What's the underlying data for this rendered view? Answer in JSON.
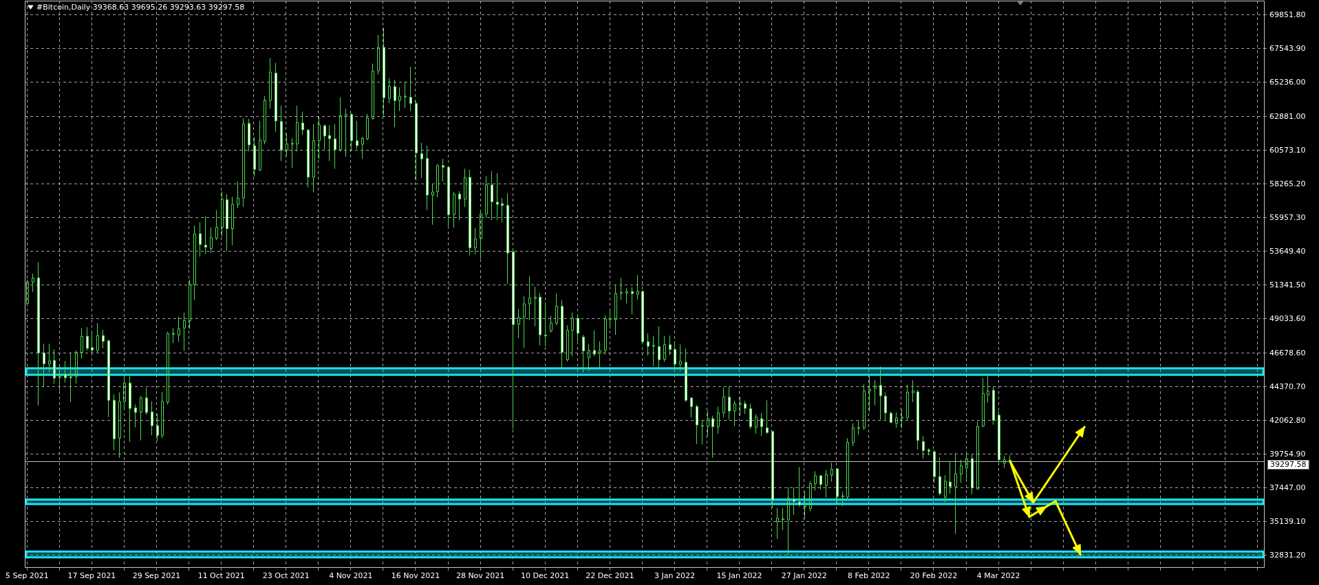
{
  "chart_data": {
    "type": "candlestick",
    "title": "#Bitcoin,Daily 39368.63 39695.26 39293.63 39297.58",
    "color": "#4cd94c",
    "grid": true,
    "xlim": [
      "2021-09-04T14:00",
      "2022-04-22T08:00"
    ],
    "ylim": [
      31980,
      70840
    ],
    "xticks": [
      {
        "value": "2021-09-05",
        "label": "5 Sep 2021"
      },
      {
        "value": "2021-09-11",
        "label": null
      },
      {
        "value": "2021-09-17",
        "label": "17 Sep 2021"
      },
      {
        "value": "2021-09-23",
        "label": null
      },
      {
        "value": "2021-09-29",
        "label": "29 Sep 2021"
      },
      {
        "value": "2021-10-05",
        "label": null
      },
      {
        "value": "2021-10-11",
        "label": "11 Oct 2021"
      },
      {
        "value": "2021-10-17",
        "label": null
      },
      {
        "value": "2021-10-23",
        "label": "23 Oct 2021"
      },
      {
        "value": "2021-10-29",
        "label": null
      },
      {
        "value": "2021-11-04",
        "label": "4 Nov 2021"
      },
      {
        "value": "2021-11-10",
        "label": null
      },
      {
        "value": "2021-11-16",
        "label": "16 Nov 2021"
      },
      {
        "value": "2021-11-22",
        "label": null
      },
      {
        "value": "2021-11-28",
        "label": "28 Nov 2021"
      },
      {
        "value": "2021-12-04",
        "label": null
      },
      {
        "value": "2021-12-10",
        "label": "10 Dec 2021"
      },
      {
        "value": "2021-12-16",
        "label": null
      },
      {
        "value": "2021-12-22",
        "label": "22 Dec 2021"
      },
      {
        "value": "2021-12-28",
        "label": null
      },
      {
        "value": "2022-01-03",
        "label": "3 Jan 2022"
      },
      {
        "value": "2022-01-09",
        "label": null
      },
      {
        "value": "2022-01-15",
        "label": "15 Jan 2022"
      },
      {
        "value": "2022-01-21",
        "label": null
      },
      {
        "value": "2022-01-27",
        "label": "27 Jan 2022"
      },
      {
        "value": "2022-02-02",
        "label": null
      },
      {
        "value": "2022-02-08",
        "label": "8 Feb 2022"
      },
      {
        "value": "2022-02-14",
        "label": null
      },
      {
        "value": "2022-02-20",
        "label": "20 Feb 2022"
      },
      {
        "value": "2022-02-26",
        "label": null
      },
      {
        "value": "2022-03-04",
        "label": "4 Mar 2022"
      },
      {
        "value": "2022-03-10",
        "label": null
      },
      {
        "value": "2022-03-16",
        "label": null
      },
      {
        "value": "2022-03-22",
        "label": null
      },
      {
        "value": "2022-03-28",
        "label": null
      },
      {
        "value": "2022-04-03",
        "label": null
      },
      {
        "value": "2022-04-09",
        "label": null
      },
      {
        "value": "2022-04-15",
        "label": null
      },
      {
        "value": "2022-04-21",
        "label": null
      }
    ],
    "yticks": [
      {
        "value": 69851.8,
        "label": "69851.80"
      },
      {
        "value": 67543.9,
        "label": "67543.90"
      },
      {
        "value": 65236,
        "label": "65236.00"
      },
      {
        "value": 62881,
        "label": "62881.00"
      },
      {
        "value": 60573.1,
        "label": "60573.10"
      },
      {
        "value": 58265.2,
        "label": "58265.20"
      },
      {
        "value": 55957.3,
        "label": "55957.30"
      },
      {
        "value": 53649.4,
        "label": "53649.40"
      },
      {
        "value": 51341.5,
        "label": "51341.50"
      },
      {
        "value": 49033.6,
        "label": "49033.60"
      },
      {
        "value": 46678.6,
        "label": "46678.60"
      },
      {
        "value": 44370.7,
        "label": "44370.70"
      },
      {
        "value": 42062.8,
        "label": "42062.80"
      },
      {
        "value": 39754.9,
        "label": "39754.90"
      },
      {
        "value": 37447,
        "label": "37447.00"
      },
      {
        "value": 35139.1,
        "label": "35139.10"
      },
      {
        "value": 32831.2,
        "label": "32831.20"
      }
    ],
    "ref_lines": [
      {
        "axis": "y",
        "value": 39297.58,
        "label": "39297.58",
        "color": "#bdbdbd"
      }
    ],
    "bands": [
      {
        "axis": "y",
        "from": 45200,
        "to": 45650,
        "color": "#19e3f0"
      },
      {
        "axis": "y",
        "from": 36350,
        "to": 36650,
        "color": "#19e3f0"
      },
      {
        "axis": "y",
        "from": 32700,
        "to": 33100,
        "color": "#19e3f0"
      }
    ],
    "x": [
      "2021-09-05",
      "2021-09-06",
      "2021-09-07",
      "2021-09-08",
      "2021-09-09",
      "2021-09-10",
      "2021-09-11",
      "2021-09-12",
      "2021-09-13",
      "2021-09-14",
      "2021-09-15",
      "2021-09-16",
      "2021-09-17",
      "2021-09-18",
      "2021-09-19",
      "2021-09-20",
      "2021-09-21",
      "2021-09-22",
      "2021-09-23",
      "2021-09-24",
      "2021-09-25",
      "2021-09-26",
      "2021-09-27",
      "2021-09-28",
      "2021-09-29",
      "2021-09-30",
      "2021-10-01",
      "2021-10-02",
      "2021-10-03",
      "2021-10-04",
      "2021-10-05",
      "2021-10-06",
      "2021-10-07",
      "2021-10-08",
      "2021-10-09",
      "2021-10-10",
      "2021-10-11",
      "2021-10-12",
      "2021-10-13",
      "2021-10-14",
      "2021-10-15",
      "2021-10-16",
      "2021-10-17",
      "2021-10-18",
      "2021-10-19",
      "2021-10-20",
      "2021-10-21",
      "2021-10-22",
      "2021-10-23",
      "2021-10-24",
      "2021-10-25",
      "2021-10-26",
      "2021-10-27",
      "2021-10-28",
      "2021-10-29",
      "2021-10-30",
      "2021-10-31",
      "2021-11-01",
      "2021-11-02",
      "2021-11-03",
      "2021-11-04",
      "2021-11-05",
      "2021-11-06",
      "2021-11-07",
      "2021-11-08",
      "2021-11-09",
      "2021-11-10",
      "2021-11-11",
      "2021-11-12",
      "2021-11-13",
      "2021-11-14",
      "2021-11-15",
      "2021-11-16",
      "2021-11-17",
      "2021-11-18",
      "2021-11-19",
      "2021-11-20",
      "2021-11-21",
      "2021-11-22",
      "2021-11-23",
      "2021-11-24",
      "2021-11-25",
      "2021-11-26",
      "2021-11-27",
      "2021-11-28",
      "2021-11-29",
      "2021-11-30",
      "2021-12-01",
      "2021-12-02",
      "2021-12-03",
      "2021-12-04",
      "2021-12-05",
      "2021-12-06",
      "2021-12-07",
      "2021-12-08",
      "2021-12-09",
      "2021-12-10",
      "2021-12-11",
      "2021-12-12",
      "2021-12-13",
      "2021-12-14",
      "2021-12-15",
      "2021-12-16",
      "2021-12-17",
      "2021-12-18",
      "2021-12-19",
      "2021-12-20",
      "2021-12-21",
      "2021-12-22",
      "2021-12-23",
      "2021-12-24",
      "2021-12-25",
      "2021-12-26",
      "2021-12-27",
      "2021-12-28",
      "2021-12-29",
      "2021-12-30",
      "2021-12-31",
      "2022-01-01",
      "2022-01-02",
      "2022-01-03",
      "2022-01-04",
      "2022-01-05",
      "2022-01-06",
      "2022-01-07",
      "2022-01-08",
      "2022-01-09",
      "2022-01-10",
      "2022-01-11",
      "2022-01-12",
      "2022-01-13",
      "2022-01-14",
      "2022-01-15",
      "2022-01-16",
      "2022-01-17",
      "2022-01-18",
      "2022-01-19",
      "2022-01-20",
      "2022-01-21",
      "2022-01-22",
      "2022-01-23",
      "2022-01-24",
      "2022-01-25",
      "2022-01-26",
      "2022-01-27",
      "2022-01-28",
      "2022-01-29",
      "2022-01-30",
      "2022-01-31",
      "2022-02-01",
      "2022-02-02",
      "2022-02-03",
      "2022-02-04",
      "2022-02-05",
      "2022-02-06",
      "2022-02-07",
      "2022-02-08",
      "2022-02-09",
      "2022-02-10",
      "2022-02-11",
      "2022-02-12",
      "2022-02-13",
      "2022-02-14",
      "2022-02-15",
      "2022-02-16",
      "2022-02-17",
      "2022-02-18",
      "2022-02-19",
      "2022-02-20",
      "2022-02-21",
      "2022-02-22",
      "2022-02-23",
      "2022-02-24",
      "2022-02-25",
      "2022-02-26",
      "2022-02-27",
      "2022-02-28",
      "2022-03-01",
      "2022-03-02",
      "2022-03-03",
      "2022-03-04",
      "2022-03-05",
      "2022-03-06"
    ],
    "ohlc": [
      [
        50090,
        51730,
        49930,
        51580
      ],
      [
        51550,
        52130,
        50870,
        51840
      ],
      [
        51840,
        52910,
        43100,
        46710
      ],
      [
        46710,
        47340,
        44360,
        45960
      ],
      [
        45960,
        47340,
        45380,
        46160
      ],
      [
        46190,
        46950,
        44590,
        44980
      ],
      [
        45010,
        45930,
        44120,
        45250
      ],
      [
        45250,
        46160,
        44670,
        45010
      ],
      [
        45060,
        46740,
        43330,
        45010
      ],
      [
        45090,
        46870,
        44590,
        46740
      ],
      [
        46740,
        48410,
        46320,
        47840
      ],
      [
        47840,
        48470,
        46870,
        47020
      ],
      [
        47070,
        48150,
        46710,
        46900
      ],
      [
        46870,
        48750,
        46710,
        47890
      ],
      [
        47890,
        48280,
        47020,
        47500
      ],
      [
        47530,
        47610,
        42310,
        43460
      ],
      [
        43460,
        43880,
        40040,
        40820
      ],
      [
        40870,
        44010,
        39520,
        43380
      ],
      [
        43380,
        45060,
        42940,
        44640
      ],
      [
        44640,
        45110,
        40620,
        42900
      ],
      [
        42940,
        43180,
        41610,
        42630
      ],
      [
        42630,
        43760,
        40710,
        43620
      ],
      [
        43620,
        44320,
        42470,
        42630
      ],
      [
        42660,
        43380,
        41060,
        41720
      ],
      [
        41720,
        42550,
        40670,
        41060
      ],
      [
        41060,
        44040,
        40870,
        43380
      ],
      [
        43330,
        48150,
        43180,
        48050
      ],
      [
        47970,
        48410,
        47370,
        48050
      ],
      [
        47940,
        49180,
        47460,
        48360
      ],
      [
        48410,
        49460,
        46840,
        48910
      ],
      [
        48910,
        51730,
        48360,
        51390
      ],
      [
        51390,
        55430,
        50330,
        54870
      ],
      [
        54870,
        55660,
        53300,
        54140
      ],
      [
        54090,
        56060,
        53480,
        53950
      ],
      [
        53860,
        55310,
        53560,
        54610
      ],
      [
        54560,
        56480,
        54440,
        55310
      ],
      [
        55310,
        57760,
        54700,
        57230
      ],
      [
        57200,
        57580,
        53690,
        55220
      ],
      [
        55220,
        57410,
        54090,
        56880
      ],
      [
        56880,
        58460,
        56620,
        57320
      ],
      [
        57320,
        62770,
        56710,
        62390
      ],
      [
        62420,
        62740,
        60500,
        60960
      ],
      [
        60900,
        61480,
        58810,
        59280
      ],
      [
        59240,
        62600,
        59160,
        61290
      ],
      [
        61200,
        64310,
        60990,
        64010
      ],
      [
        64000,
        66900,
        63440,
        65940
      ],
      [
        65880,
        66580,
        61860,
        62600
      ],
      [
        62560,
        63650,
        59850,
        60610
      ],
      [
        60610,
        61740,
        60200,
        61030
      ],
      [
        61010,
        61430,
        59380,
        61060
      ],
      [
        61030,
        63650,
        60500,
        62480
      ],
      [
        62460,
        63230,
        61650,
        62000
      ],
      [
        61980,
        62040,
        58050,
        58750
      ],
      [
        58750,
        62390,
        57700,
        61250
      ],
      [
        61250,
        62880,
        59980,
        62340
      ],
      [
        62270,
        62350,
        60640,
        61570
      ],
      [
        61600,
        62300,
        59850,
        61390
      ],
      [
        61370,
        62390,
        59330,
        60640
      ],
      [
        60640,
        64220,
        60500,
        62950
      ],
      [
        62910,
        63440,
        60150,
        63040
      ],
      [
        63050,
        63140,
        60550,
        61260
      ],
      [
        61240,
        62610,
        60680,
        60910
      ],
      [
        61000,
        61510,
        60000,
        61400
      ],
      [
        61380,
        63090,
        61270,
        62800
      ],
      [
        62770,
        66530,
        62690,
        66030
      ],
      [
        66030,
        68490,
        65770,
        67640
      ],
      [
        67640,
        69010,
        62930,
        64190
      ],
      [
        64150,
        65540,
        63800,
        64980
      ],
      [
        64950,
        65430,
        62170,
        64000
      ],
      [
        64000,
        64900,
        63280,
        64300
      ],
      [
        64240,
        65300,
        63480,
        64290
      ],
      [
        64220,
        66320,
        63290,
        63800
      ],
      [
        63790,
        63960,
        58530,
        60420
      ],
      [
        60360,
        61100,
        58700,
        60000
      ],
      [
        60030,
        60900,
        56490,
        57520
      ],
      [
        57520,
        58290,
        55490,
        57730
      ],
      [
        57770,
        59640,
        57370,
        59540
      ],
      [
        59540,
        60000,
        58430,
        59430
      ],
      [
        59430,
        59480,
        55410,
        56180
      ],
      [
        56180,
        57730,
        55280,
        57570
      ],
      [
        57590,
        57800,
        55800,
        57250
      ],
      [
        57250,
        59330,
        56700,
        58720
      ],
      [
        58740,
        59260,
        53390,
        53910
      ],
      [
        53910,
        55280,
        53450,
        54520
      ],
      [
        54540,
        56340,
        53160,
        56230
      ],
      [
        56230,
        58830,
        55970,
        58220
      ],
      [
        58220,
        59170,
        55810,
        57060
      ],
      [
        57040,
        59010,
        55810,
        56890
      ],
      [
        56930,
        57330,
        55650,
        56810
      ],
      [
        56810,
        57640,
        51430,
        53550
      ],
      [
        53630,
        53790,
        41510,
        48650
      ],
      [
        48670,
        49700,
        47720,
        49140
      ],
      [
        49160,
        50580,
        47060,
        50070
      ],
      [
        50070,
        51950,
        48950,
        50470
      ],
      [
        50450,
        51240,
        48530,
        50530
      ],
      [
        50530,
        50810,
        47220,
        47940
      ],
      [
        47930,
        50180,
        47160,
        47870
      ],
      [
        48210,
        49240,
        48100,
        48760
      ],
      [
        48730,
        50770,
        48610,
        49900
      ],
      [
        49900,
        50340,
        45690,
        46750
      ],
      [
        46240,
        48610,
        46110,
        48260
      ],
      [
        48260,
        49470,
        46480,
        49080
      ],
      [
        49080,
        49240,
        47500,
        48050
      ],
      [
        47790,
        47940,
        45370,
        46840
      ],
      [
        46370,
        47310,
        45450,
        46870
      ],
      [
        46870,
        48240,
        46480,
        46630
      ],
      [
        46680,
        47500,
        45640,
        46870
      ],
      [
        46900,
        49270,
        46590,
        49030
      ],
      [
        49000,
        49580,
        48370,
        49050
      ],
      [
        49000,
        51330,
        47940,
        50780
      ],
      [
        50800,
        51840,
        50340,
        50840
      ],
      [
        50810,
        51130,
        50100,
        50910
      ],
      [
        50910,
        51210,
        49360,
        50770
      ],
      [
        50730,
        52040,
        50370,
        50920
      ],
      [
        50920,
        50970,
        47340,
        47470
      ],
      [
        47470,
        48050,
        46520,
        47160
      ],
      [
        47160,
        47850,
        45800,
        47230
      ],
      [
        47140,
        48530,
        45690,
        46240
      ],
      [
        46270,
        47850,
        46080,
        47270
      ],
      [
        47270,
        47900,
        46560,
        46950
      ],
      [
        46950,
        47530,
        45530,
        45930
      ],
      [
        45910,
        47300,
        45460,
        46130
      ],
      [
        46060,
        47010,
        43350,
        43460
      ],
      [
        43620,
        43650,
        42280,
        43030
      ],
      [
        43030,
        43150,
        40460,
        41770
      ],
      [
        41700,
        42120,
        40420,
        41730
      ],
      [
        41680,
        42750,
        41020,
        42200
      ],
      [
        42200,
        42400,
        39520,
        41650
      ],
      [
        41650,
        43030,
        41170,
        42590
      ],
      [
        42590,
        44330,
        42280,
        43700
      ],
      [
        43670,
        44410,
        42150,
        42720
      ],
      [
        42720,
        43410,
        41680,
        43220
      ],
      [
        43190,
        43670,
        42400,
        43240
      ],
      [
        43220,
        43410,
        42510,
        42910
      ],
      [
        42880,
        43220,
        41490,
        41650
      ],
      [
        41620,
        42510,
        41170,
        42310
      ],
      [
        42200,
        42590,
        41020,
        41650
      ],
      [
        41570,
        43460,
        41170,
        41250
      ],
      [
        41320,
        41350,
        36090,
        36610
      ],
      [
        35140,
        36090,
        33960,
        35380
      ],
      [
        35300,
        36090,
        34560,
        35330
      ],
      [
        35270,
        37500,
        32860,
        36750
      ],
      [
        36680,
        37500,
        35610,
        36530
      ],
      [
        36480,
        38880,
        36160,
        36290
      ],
      [
        36160,
        37190,
        35350,
        36210
      ],
      [
        36050,
        37930,
        35850,
        37740
      ],
      [
        37740,
        38600,
        37270,
        38290
      ],
      [
        38290,
        38330,
        37340,
        37690
      ],
      [
        37630,
        38680,
        36790,
        38370
      ],
      [
        38330,
        39180,
        37890,
        38730
      ],
      [
        38760,
        38810,
        36320,
        36870
      ],
      [
        36870,
        37190,
        36200,
        36910
      ],
      [
        36830,
        40850,
        36720,
        40570
      ],
      [
        40560,
        41890,
        40320,
        41580
      ],
      [
        41550,
        42050,
        41110,
        41590
      ],
      [
        41580,
        44560,
        41420,
        44090
      ],
      [
        44090,
        45110,
        42680,
        44210
      ],
      [
        44290,
        44830,
        43100,
        44450
      ],
      [
        44480,
        45780,
        42130,
        43770
      ],
      [
        43740,
        44010,
        42130,
        42600
      ],
      [
        42570,
        42680,
        41890,
        41940
      ],
      [
        41890,
        42630,
        41580,
        42250
      ],
      [
        42250,
        42830,
        41560,
        42300
      ],
      [
        42280,
        44510,
        42130,
        44010
      ],
      [
        43980,
        44830,
        43330,
        44090
      ],
      [
        44040,
        44170,
        40090,
        40710
      ],
      [
        40630,
        41000,
        39460,
        40010
      ],
      [
        40050,
        40160,
        39690,
        39960
      ],
      [
        39930,
        40050,
        37810,
        38230
      ],
      [
        38230,
        39540,
        36950,
        37070
      ],
      [
        36820,
        38330,
        36470,
        37920
      ],
      [
        37860,
        39300,
        37040,
        37540
      ],
      [
        37540,
        39850,
        34310,
        38440
      ],
      [
        38390,
        39380,
        37810,
        38990
      ],
      [
        38830,
        39850,
        38080,
        39460
      ],
      [
        39460,
        39800,
        37020,
        37450
      ],
      [
        37380,
        42000,
        37340,
        41660
      ],
      [
        41690,
        44980,
        41620,
        43930
      ],
      [
        43820,
        45270,
        43300,
        44090
      ],
      [
        44140,
        44400,
        41780,
        42090
      ],
      [
        42440,
        42680,
        39220,
        39380
      ],
      [
        39140,
        39670,
        38830,
        39380
      ],
      [
        39368.63,
        39695.26,
        39293.63,
        39297.58
      ]
    ],
    "colors": [
      "#4cd94c",
      "#4cd94c",
      "#ffffff",
      "#ffffff",
      "#4cd94c",
      "#ffffff",
      "#4cd94c",
      "#ffffff",
      "#ffffff",
      "#4cd94c",
      "#4cd94c",
      "#ffffff",
      "#ffffff",
      "#4cd94c",
      "#ffffff",
      "#ffffff",
      "#ffffff",
      "#4cd94c",
      "#4cd94c",
      "#ffffff",
      "#ffffff",
      "#4cd94c",
      "#ffffff",
      "#ffffff",
      "#ffffff",
      "#4cd94c",
      "#4cd94c",
      "#4cd94c",
      "#4cd94c",
      "#4cd94c",
      "#4cd94c",
      "#4cd94c",
      "#ffffff",
      "#ffffff",
      "#4cd94c",
      "#4cd94c",
      "#4cd94c",
      "#ffffff",
      "#4cd94c",
      "#4cd94c",
      "#4cd94c",
      "#ffffff",
      "#ffffff",
      "#4cd94c",
      "#4cd94c",
      "#4cd94c",
      "#ffffff",
      "#ffffff",
      "#4cd94c",
      "#4cd94c",
      "#4cd94c",
      "#ffffff",
      "#ffffff",
      "#4cd94c",
      "#4cd94c",
      "#ffffff",
      "#ffffff",
      "#ffffff",
      "#4cd94c",
      "#4cd94c",
      "#ffffff",
      "#ffffff",
      "#4cd94c",
      "#4cd94c",
      "#4cd94c",
      "#4cd94c",
      "#ffffff",
      "#4cd94c",
      "#ffffff",
      "#4cd94c",
      "#4cd94c",
      "#ffffff",
      "#ffffff",
      "#ffffff",
      "#ffffff",
      "#4cd94c",
      "#4cd94c",
      "#ffffff",
      "#ffffff",
      "#4cd94c",
      "#ffffff",
      "#4cd94c",
      "#ffffff",
      "#4cd94c",
      "#4cd94c",
      "#4cd94c",
      "#ffffff",
      "#ffffff",
      "#ffffff",
      "#ffffff",
      "#ffffff",
      "#4cd94c",
      "#4cd94c",
      "#4cd94c",
      "#4cd94c",
      "#ffffff",
      "#ffffff",
      "#4cd94c",
      "#4cd94c",
      "#ffffff",
      "#4cd94c",
      "#4cd94c",
      "#ffffff",
      "#ffffff",
      "#4cd94c",
      "#ffffff",
      "#4cd94c",
      "#4cd94c",
      "#4cd94c",
      "#4cd94c",
      "#4cd94c",
      "#4cd94c",
      "#ffffff",
      "#4cd94c",
      "#ffffff",
      "#ffffff",
      "#4cd94c",
      "#ffffff",
      "#4cd94c",
      "#ffffff",
      "#ffffff",
      "#4cd94c",
      "#ffffff",
      "#ffffff",
      "#ffffff",
      "#4cd94c",
      "#4cd94c",
      "#ffffff",
      "#4cd94c",
      "#4cd94c",
      "#ffffff",
      "#4cd94c",
      "#4cd94c",
      "#ffffff",
      "#ffffff",
      "#4cd94c",
      "#ffffff",
      "#ffffff",
      "#ffffff",
      "#4cd94c",
      "#4cd94c",
      "#4cd94c",
      "#ffffff",
      "#ffffff",
      "#4cd94c",
      "#4cd94c",
      "#4cd94c",
      "#ffffff",
      "#4cd94c",
      "#4cd94c",
      "#ffffff",
      "#4cd94c",
      "#4cd94c",
      "#4cd94c",
      "#4cd94c",
      "#4cd94c",
      "#4cd94c",
      "#4cd94c",
      "#ffffff",
      "#ffffff",
      "#ffffff",
      "#4cd94c",
      "#4cd94c",
      "#4cd94c",
      "#4cd94c",
      "#ffffff",
      "#ffffff",
      "#ffffff",
      "#ffffff",
      "#ffffff",
      "#4cd94c",
      "#ffffff",
      "#4cd94c",
      "#4cd94c",
      "#4cd94c",
      "#ffffff",
      "#4cd94c",
      "#4cd94c",
      "#4cd94c",
      "#ffffff",
      "#ffffff",
      "#4cd94c",
      "#ffffff"
    ]
  }
}
